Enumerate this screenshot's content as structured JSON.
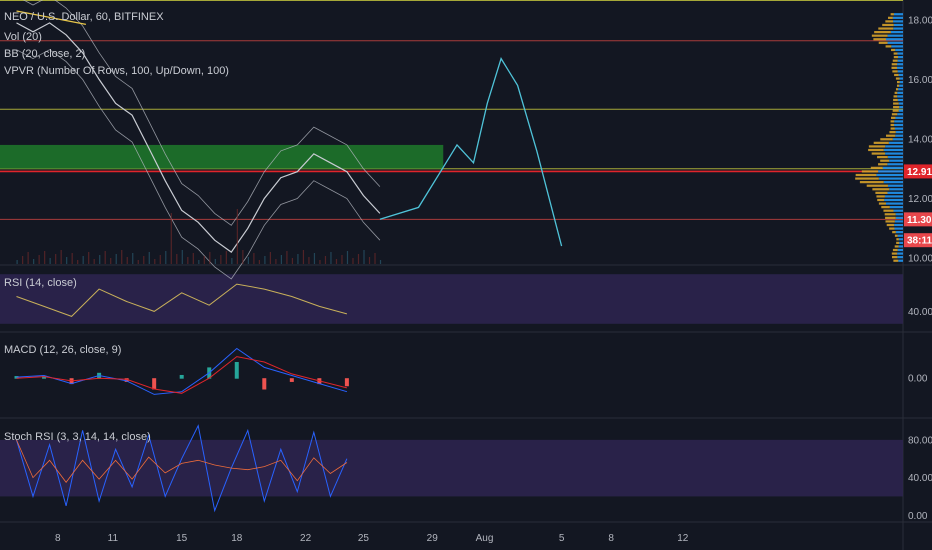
{
  "chart_data": [
    {
      "pane": "price",
      "type": "line",
      "title": "NEO / U.S. Dollar, 60, BITFINEX",
      "indicators": [
        "Vol (20)",
        "BB (20, close, 2)",
        "VPVR (Number Of Rows, 100, Up/Down, 100)"
      ],
      "ylim": [
        9.8,
        18.4
      ],
      "y_ticks": [
        "10.00",
        "12.00",
        "14.00",
        "16.00",
        "18.00"
      ],
      "price_badges": [
        {
          "label": "12.91",
          "value": 12.91,
          "color": "#e0252b"
        },
        {
          "label": "11.30",
          "value": 11.3,
          "color": "#e8474c"
        },
        {
          "label": "38:11",
          "value": 10.6,
          "color": "#e8474c"
        }
      ],
      "horizontal_levels": [
        {
          "value": 18.65,
          "color": "#a6a838"
        },
        {
          "value": 17.3,
          "color": "#a83b3b"
        },
        {
          "value": 15.0,
          "color": "#a6a838"
        },
        {
          "value": 13.0,
          "color": "#a6a838"
        },
        {
          "value": 12.91,
          "color": "#e0252b"
        },
        {
          "value": 11.3,
          "color": "#a83b3b"
        }
      ],
      "zone": {
        "from": 13.0,
        "to": 13.8,
        "color": "#1f7a2a"
      },
      "trendline": {
        "color": "#e8c64a",
        "points": [
          [
            0.0,
            18.3
          ],
          [
            1.26,
            17.85
          ]
        ]
      },
      "price_series": {
        "name": "Close",
        "x": [
          0,
          0.3,
          0.6,
          0.9,
          1.2,
          1.5,
          1.8,
          2.1,
          2.4,
          2.7,
          3.0,
          3.3,
          3.6,
          3.9,
          4.2,
          4.5,
          4.8,
          5.1,
          5.4,
          5.7,
          6.0,
          6.3,
          6.6
        ],
        "y": [
          17.9,
          17.6,
          17.9,
          17.5,
          16.9,
          16.0,
          15.2,
          14.8,
          13.7,
          12.6,
          11.6,
          11.2,
          10.6,
          10.2,
          11.0,
          12.0,
          12.7,
          12.9,
          13.5,
          13.2,
          12.9,
          12.1,
          11.5
        ]
      },
      "projection": {
        "color": "#4fc3d9",
        "x": [
          6.6,
          7.3,
          7.8,
          8.0,
          8.3,
          8.55,
          8.8,
          9.1,
          9.45,
          9.9
        ],
        "y": [
          11.3,
          11.7,
          13.2,
          13.8,
          13.2,
          15.2,
          16.7,
          15.8,
          13.6,
          10.4
        ]
      },
      "x_ticks": [
        {
          "label": "8",
          "x": 0.75
        },
        {
          "label": "11",
          "x": 1.75
        },
        {
          "label": "15",
          "x": 3.0
        },
        {
          "label": "18",
          "x": 4.0
        },
        {
          "label": "22",
          "x": 5.25
        },
        {
          "label": "25",
          "x": 6.3
        },
        {
          "label": "29",
          "x": 7.55
        },
        {
          "label": "Aug",
          "x": 8.5
        },
        {
          "label": "5",
          "x": 9.9
        },
        {
          "label": "8",
          "x": 10.8
        },
        {
          "label": "12",
          "x": 12.1
        }
      ],
      "xlim": [
        -0.3,
        16.1
      ]
    },
    {
      "pane": "rsi",
      "type": "line",
      "title": "RSI (14, close)",
      "ylim": [
        25,
        75
      ],
      "y_ticks": [
        "40.00"
      ],
      "band": [
        30,
        70
      ],
      "series": [
        {
          "x": [
            0,
            0.5,
            1,
            1.5,
            2,
            2.5,
            3,
            3.5,
            4,
            4.5,
            5,
            5.5,
            6
          ],
          "values": [
            52,
            44,
            36,
            58,
            48,
            40,
            55,
            45,
            62,
            58,
            52,
            44,
            38
          ]
        }
      ]
    },
    {
      "pane": "macd",
      "type": "line",
      "title": "MACD (12, 26, close, 9)",
      "ylim": [
        -0.7,
        0.8
      ],
      "y_ticks": [
        "0.00"
      ],
      "series": [
        {
          "x": [
            0,
            0.5,
            1,
            1.5,
            2,
            2.5,
            3,
            3.5,
            4,
            4.5,
            5,
            5.5,
            6
          ],
          "values": [
            0.02,
            0.05,
            -0.1,
            0.05,
            -0.05,
            -0.3,
            -0.25,
            0.1,
            0.55,
            0.2,
            0.05,
            -0.1,
            -0.25
          ]
        },
        {
          "x": [
            0,
            0.5,
            1,
            1.5,
            2,
            2.5,
            3,
            3.5,
            4,
            4.5,
            5,
            5.5,
            6
          ],
          "values": [
            0.0,
            0.03,
            -0.05,
            0.0,
            -0.02,
            -0.2,
            -0.28,
            0.0,
            0.4,
            0.3,
            0.08,
            -0.05,
            -0.18
          ]
        }
      ]
    },
    {
      "pane": "stoch",
      "type": "line",
      "title": "Stoch RSI (3, 3, 14, 14, close)",
      "ylim": [
        -5,
        100
      ],
      "y_ticks": [
        "0.00",
        "40.00",
        "80.00"
      ],
      "band": [
        20,
        80
      ],
      "series": [
        {
          "x": [
            0,
            0.3,
            0.6,
            0.9,
            1.2,
            1.5,
            1.8,
            2.1,
            2.4,
            2.7,
            3.0,
            3.3,
            3.6,
            3.9,
            4.2,
            4.5,
            4.8,
            5.1,
            5.4,
            5.7,
            6.0
          ],
          "values": [
            80,
            20,
            75,
            10,
            90,
            15,
            70,
            30,
            85,
            20,
            60,
            95,
            5,
            50,
            90,
            15,
            70,
            25,
            88,
            20,
            60
          ]
        }
      ]
    }
  ],
  "colors": {
    "background": "#131722",
    "price_line": "#c9ccd3",
    "bb_line": "#b2b5be",
    "rsi_line": "#c8b05a",
    "rsi_band": "#3a2a5a",
    "macd_line": "#2962ff",
    "signal_line": "#e0252b",
    "vpvr_up": "#2196f3",
    "vpvr_down": "#d7a22a"
  }
}
